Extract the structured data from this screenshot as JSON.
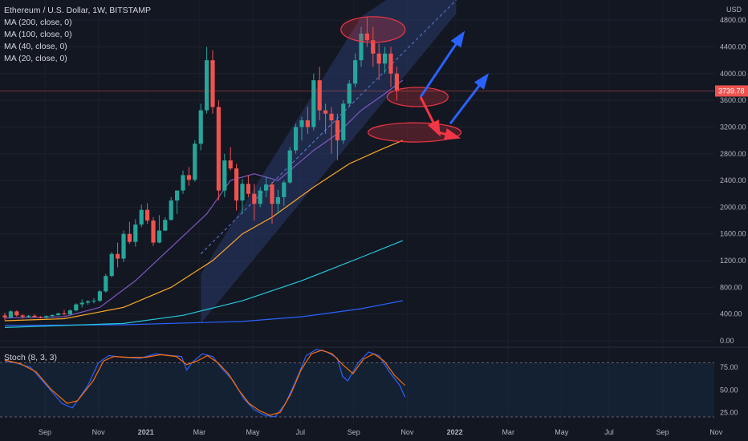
{
  "colors": {
    "background": "#131722",
    "up": "#26a69a",
    "down": "#ef5350",
    "ma200": "#2962ff",
    "ma100": "#26c6da",
    "ma40": "#ffa726",
    "ma20": "#7e57c2",
    "stoch_k": "#2962ff",
    "stoch_d": "#ff6d00",
    "channel": "#2a3a6b",
    "arrow_blue": "#2962ff",
    "arrow_red": "#f23645"
  },
  "header": {
    "title": "Ethereum / U.S. Dollar, 1W, BITSTAMP",
    "indicators": [
      "MA (200, close, 0)",
      "MA (100, close, 0)",
      "MA (40, close, 0)",
      "MA (20, close, 0)"
    ]
  },
  "price_axis": {
    "currency": "USD",
    "ticks": [
      "4800.00",
      "4400.00",
      "4000.00",
      "3600.00",
      "3200.00",
      "2800.00",
      "2400.00",
      "2000.00",
      "1600.00",
      "1200.00",
      "800.00",
      "400.00",
      "0.00"
    ],
    "tick_values": [
      4800,
      4400,
      4000,
      3600,
      3200,
      2800,
      2400,
      2000,
      1600,
      1200,
      800,
      400,
      0
    ],
    "last_price_label": "3739.78",
    "last_price": 3739.78
  },
  "time_axis": {
    "labels": [
      "Sep",
      "Nov",
      "2021",
      "Mar",
      "May",
      "Jul",
      "Sep",
      "Nov",
      "2022",
      "Mar",
      "May",
      "Jul",
      "Sep",
      "Nov"
    ],
    "label_weeks": [
      0,
      9,
      17,
      26,
      35,
      43,
      52,
      61,
      69,
      78,
      87,
      95,
      104,
      113
    ]
  },
  "stoch": {
    "label": "Stoch (8, 3, 3)",
    "ticks": [
      "75.00",
      "50.00",
      "25.00"
    ],
    "tick_values": [
      75,
      50,
      25
    ],
    "bands": [
      80,
      20
    ]
  },
  "chart_data": {
    "type": "candlestick",
    "title": "Ethereum / U.S. Dollar, 1W, BITSTAMP",
    "x_unit": "weeks from first candle (weekly, starting Aug 2020)",
    "ylim": [
      0,
      5000
    ],
    "candles": [
      [
        380,
        420,
        300,
        350
      ],
      [
        350,
        460,
        340,
        440
      ],
      [
        440,
        455,
        360,
        380
      ],
      [
        380,
        400,
        330,
        360
      ],
      [
        360,
        385,
        340,
        375
      ],
      [
        375,
        395,
        345,
        355
      ],
      [
        355,
        370,
        335,
        345
      ],
      [
        345,
        380,
        330,
        370
      ],
      [
        370,
        395,
        355,
        385
      ],
      [
        385,
        420,
        375,
        410
      ],
      [
        410,
        460,
        380,
        395
      ],
      [
        395,
        470,
        390,
        455
      ],
      [
        455,
        560,
        440,
        545
      ],
      [
        545,
        620,
        500,
        570
      ],
      [
        570,
        610,
        540,
        590
      ],
      [
        590,
        640,
        560,
        600
      ],
      [
        600,
        760,
        580,
        740
      ],
      [
        740,
        1000,
        720,
        970
      ],
      [
        970,
        1330,
        950,
        1300
      ],
      [
        1300,
        1470,
        1100,
        1230
      ],
      [
        1230,
        1650,
        1180,
        1600
      ],
      [
        1600,
        1780,
        1450,
        1480
      ],
      [
        1480,
        1820,
        1410,
        1740
      ],
      [
        1740,
        2040,
        1700,
        1960
      ],
      [
        1960,
        2060,
        1750,
        1800
      ],
      [
        1800,
        1850,
        1420,
        1470
      ],
      [
        1470,
        1880,
        1460,
        1650
      ],
      [
        1650,
        1850,
        1640,
        1810
      ],
      [
        1810,
        2150,
        1800,
        2100
      ],
      [
        2100,
        2200,
        1900,
        2250
      ],
      [
        2250,
        2550,
        2200,
        2480
      ],
      [
        2480,
        2600,
        2320,
        2410
      ],
      [
        2410,
        3000,
        2380,
        2950
      ],
      [
        2950,
        3550,
        2850,
        3450
      ],
      [
        3450,
        4400,
        3400,
        4200
      ],
      [
        4200,
        4350,
        3400,
        3500
      ],
      [
        3500,
        3600,
        2100,
        2250
      ],
      [
        2250,
        2800,
        2150,
        2700
      ],
      [
        2700,
        2900,
        2550,
        2580
      ],
      [
        2580,
        2650,
        1950,
        2100
      ],
      [
        2100,
        2420,
        1900,
        2350
      ],
      [
        2350,
        2480,
        2150,
        2200
      ],
      [
        2200,
        2350,
        1800,
        2050
      ],
      [
        2050,
        2300,
        2000,
        2250
      ],
      [
        2250,
        2450,
        2150,
        2340
      ],
      [
        2340,
        2380,
        1750,
        2050
      ],
      [
        2050,
        2260,
        1900,
        2150
      ],
      [
        2150,
        2400,
        2020,
        2370
      ],
      [
        2370,
        2900,
        2350,
        2850
      ],
      [
        2850,
        3250,
        2800,
        3200
      ],
      [
        3200,
        3350,
        3000,
        3300
      ],
      [
        3300,
        3500,
        3100,
        3200
      ],
      [
        3200,
        4000,
        3150,
        3900
      ],
      [
        3900,
        4100,
        3300,
        3450
      ],
      [
        3450,
        3550,
        3100,
        3400
      ],
      [
        3400,
        3500,
        2800,
        3300
      ],
      [
        3300,
        3400,
        2700,
        3000
      ],
      [
        3000,
        3600,
        2950,
        3550
      ],
      [
        3550,
        3900,
        3500,
        3850
      ],
      [
        3850,
        4300,
        3800,
        4200
      ],
      [
        4200,
        4700,
        4100,
        4600
      ],
      [
        4600,
        4850,
        4400,
        4500
      ],
      [
        4500,
        4700,
        4100,
        4300
      ],
      [
        4300,
        4450,
        3900,
        4150
      ],
      [
        4150,
        4400,
        4000,
        4300
      ],
      [
        4300,
        4400,
        3800,
        4000
      ],
      [
        4000,
        4100,
        3600,
        3739.78
      ]
    ],
    "series": [
      {
        "name": "MA (200, close, 0)",
        "values": [
          [
            0,
            230
          ],
          [
            20,
            240
          ],
          [
            40,
            290
          ],
          [
            50,
            360
          ],
          [
            60,
            480
          ],
          [
            67,
            600
          ]
        ]
      },
      {
        "name": "MA (100, close, 0)",
        "values": [
          [
            0,
            200
          ],
          [
            20,
            260
          ],
          [
            30,
            380
          ],
          [
            40,
            600
          ],
          [
            50,
            900
          ],
          [
            60,
            1250
          ],
          [
            67,
            1500
          ]
        ]
      },
      {
        "name": "MA (40, close, 0)",
        "values": [
          [
            0,
            300
          ],
          [
            10,
            330
          ],
          [
            20,
            500
          ],
          [
            28,
            800
          ],
          [
            35,
            1200
          ],
          [
            40,
            1600
          ],
          [
            45,
            1850
          ],
          [
            52,
            2300
          ],
          [
            58,
            2650
          ],
          [
            63,
            2850
          ],
          [
            67,
            3000
          ]
        ]
      },
      {
        "name": "MA (20, close, 0)",
        "values": [
          [
            0,
            340
          ],
          [
            10,
            360
          ],
          [
            16,
            500
          ],
          [
            22,
            900
          ],
          [
            28,
            1400
          ],
          [
            34,
            1900
          ],
          [
            38,
            2400
          ],
          [
            42,
            2500
          ],
          [
            46,
            2400
          ],
          [
            52,
            2850
          ],
          [
            56,
            3100
          ],
          [
            60,
            3450
          ],
          [
            64,
            3700
          ],
          [
            67,
            3900
          ]
        ]
      }
    ],
    "stoch_series": [
      {
        "name": "K",
        "values": [
          [
            0,
            82
          ],
          [
            2,
            80
          ],
          [
            5,
            75
          ],
          [
            8,
            55
          ],
          [
            11,
            35
          ],
          [
            13,
            30
          ],
          [
            16,
            55
          ],
          [
            18,
            80
          ],
          [
            20,
            88
          ],
          [
            23,
            86
          ],
          [
            26,
            85
          ],
          [
            29,
            90
          ],
          [
            32,
            88
          ],
          [
            34,
            87
          ],
          [
            35,
            72
          ],
          [
            36,
            80
          ],
          [
            38,
            90
          ],
          [
            40,
            87
          ],
          [
            42,
            72
          ],
          [
            44,
            60
          ],
          [
            46,
            40
          ],
          [
            48,
            28
          ],
          [
            50,
            22
          ],
          [
            52,
            20
          ],
          [
            54,
            35
          ],
          [
            56,
            60
          ],
          [
            58,
            88
          ],
          [
            60,
            95
          ],
          [
            62,
            92
          ],
          [
            64,
            85
          ],
          [
            65,
            65
          ],
          [
            66,
            60
          ],
          [
            68,
            80
          ],
          [
            70,
            92
          ],
          [
            72,
            88
          ],
          [
            74,
            70
          ],
          [
            76,
            55
          ],
          [
            77,
            42
          ]
        ]
      },
      {
        "name": "D",
        "values": [
          [
            0,
            83
          ],
          [
            3,
            79
          ],
          [
            6,
            70
          ],
          [
            9,
            50
          ],
          [
            12,
            35
          ],
          [
            14,
            38
          ],
          [
            17,
            60
          ],
          [
            19,
            82
          ],
          [
            21,
            87
          ],
          [
            24,
            86
          ],
          [
            27,
            86
          ],
          [
            30,
            89
          ],
          [
            33,
            87
          ],
          [
            35,
            78
          ],
          [
            37,
            82
          ],
          [
            39,
            88
          ],
          [
            41,
            80
          ],
          [
            43,
            68
          ],
          [
            45,
            50
          ],
          [
            47,
            35
          ],
          [
            49,
            27
          ],
          [
            51,
            22
          ],
          [
            53,
            25
          ],
          [
            55,
            45
          ],
          [
            57,
            72
          ],
          [
            59,
            90
          ],
          [
            61,
            94
          ],
          [
            63,
            90
          ],
          [
            65,
            78
          ],
          [
            67,
            68
          ],
          [
            69,
            84
          ],
          [
            71,
            90
          ],
          [
            73,
            82
          ],
          [
            75,
            66
          ],
          [
            77,
            55
          ]
        ]
      }
    ]
  }
}
